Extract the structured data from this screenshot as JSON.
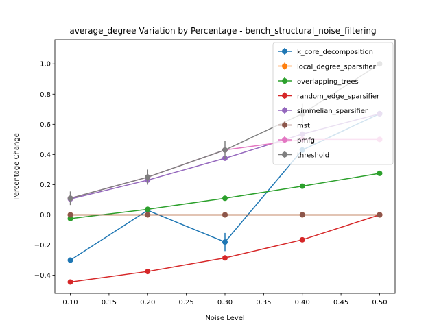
{
  "chart_data": {
    "type": "line",
    "title": "average_degree Variation by Percentage - bench_structural_noise_filtering",
    "xlabel": "Noise Level",
    "ylabel": "Percentage Change",
    "xlim": [
      0.08,
      0.52
    ],
    "ylim": [
      -0.52,
      1.16
    ],
    "x_ticks": [
      "0.10",
      "0.15",
      "0.20",
      "0.25",
      "0.30",
      "0.35",
      "0.40",
      "0.45",
      "0.50"
    ],
    "y_ticks": [
      "−0.4",
      "−0.2",
      "0.0",
      "0.2",
      "0.4",
      "0.6",
      "0.8",
      "1.0"
    ],
    "grid": false,
    "legend_position": "top-right",
    "x": [
      0.1,
      0.2,
      0.3,
      0.4,
      0.5
    ],
    "series": [
      {
        "name": "k_core_decomposition",
        "color": "#1f77b4",
        "values": [
          -0.3,
          0.03,
          -0.18,
          0.43,
          0.67
        ],
        "errors": [
          0,
          0,
          0.06,
          0,
          0
        ]
      },
      {
        "name": "local_degree_sparsifier",
        "color": "#ff7f0e",
        "values": [
          0.0,
          0.0,
          0.0,
          0.0,
          0.0
        ],
        "errors": [
          0,
          0,
          0,
          0,
          0
        ]
      },
      {
        "name": "overlapping_trees",
        "color": "#2ca02c",
        "values": [
          -0.025,
          0.037,
          0.11,
          0.19,
          0.275
        ],
        "errors": [
          0,
          0,
          0,
          0,
          0
        ]
      },
      {
        "name": "random_edge_sparsifier",
        "color": "#d62728",
        "values": [
          -0.445,
          -0.375,
          -0.285,
          -0.165,
          0.0
        ],
        "errors": [
          0,
          0,
          0,
          0,
          0
        ]
      },
      {
        "name": "simmelian_sparsifier",
        "color": "#9467bd",
        "values": [
          0.105,
          0.23,
          0.375,
          0.535,
          0.67
        ],
        "errors": [
          0,
          0,
          0,
          0,
          0
        ]
      },
      {
        "name": "mst",
        "color": "#8c564b",
        "values": [
          0.0,
          0.0,
          0.0,
          0.0,
          0.0
        ],
        "errors": [
          0,
          0,
          0,
          0,
          0
        ]
      },
      {
        "name": "pmfg",
        "color": "#e377c2",
        "values": [
          0.11,
          0.25,
          0.43,
          0.5,
          0.5
        ],
        "errors": [
          0,
          0,
          0,
          0,
          0
        ]
      },
      {
        "name": "threshold",
        "color": "#7f7f7f",
        "values": [
          0.11,
          0.25,
          0.43,
          0.67,
          1.0
        ],
        "errors": [
          0.045,
          0.05,
          0.06,
          0.065,
          0
        ]
      }
    ]
  }
}
